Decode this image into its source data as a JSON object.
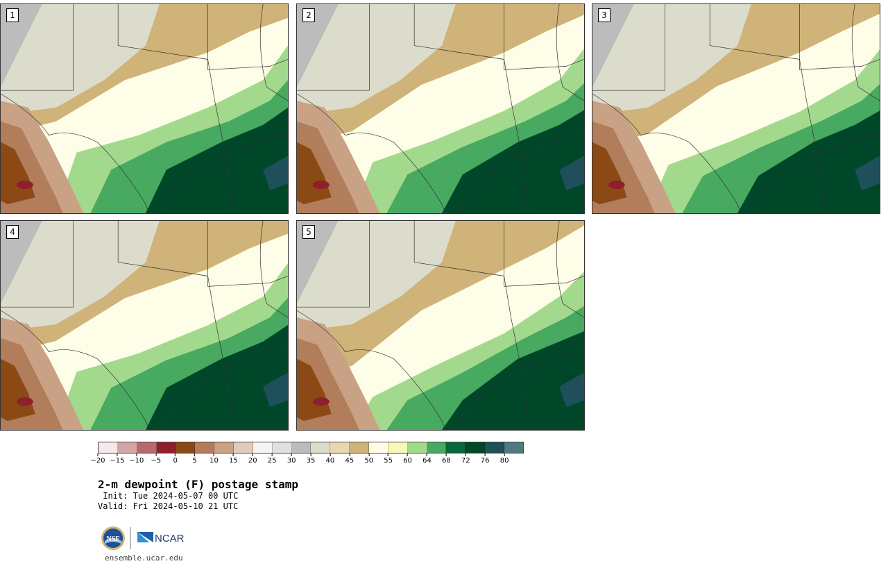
{
  "panels": [
    {
      "label": "1"
    },
    {
      "label": "2"
    },
    {
      "label": "3"
    },
    {
      "label": "4"
    },
    {
      "label": "5"
    }
  ],
  "colorbar": {
    "colors": [
      "#f5eaea",
      "#d4a5a7",
      "#b66a6e",
      "#8f1f2a",
      "#8b4a15",
      "#b27d5a",
      "#c9a184",
      "#e3cbb9",
      "#f4f4f4",
      "#e0e0e0",
      "#bcbcbc",
      "#dcdccc",
      "#e6d8b0",
      "#cfb378",
      "#fdfde8",
      "#f6f9b7",
      "#a3d98c",
      "#48a961",
      "#08663b",
      "#00472a",
      "#1e4f5a",
      "#507a80"
    ],
    "tick_labels": [
      "−20",
      "−15",
      "−10",
      "−5",
      "0",
      "5",
      "10",
      "15",
      "20",
      "25",
      "30",
      "35",
      "40",
      "45",
      "50",
      "55",
      "60",
      "64",
      "68",
      "72",
      "76",
      "80"
    ]
  },
  "title": "2-m dewpoint (F) postage stamp",
  "init": " Init: Tue 2024-05-07 00 UTC",
  "valid": "Valid: Fri 2024-05-10 21 UTC",
  "logos": {
    "nsf": "NSF",
    "ncar": "NCAR"
  },
  "url": "ensemble.ucar.edu"
}
